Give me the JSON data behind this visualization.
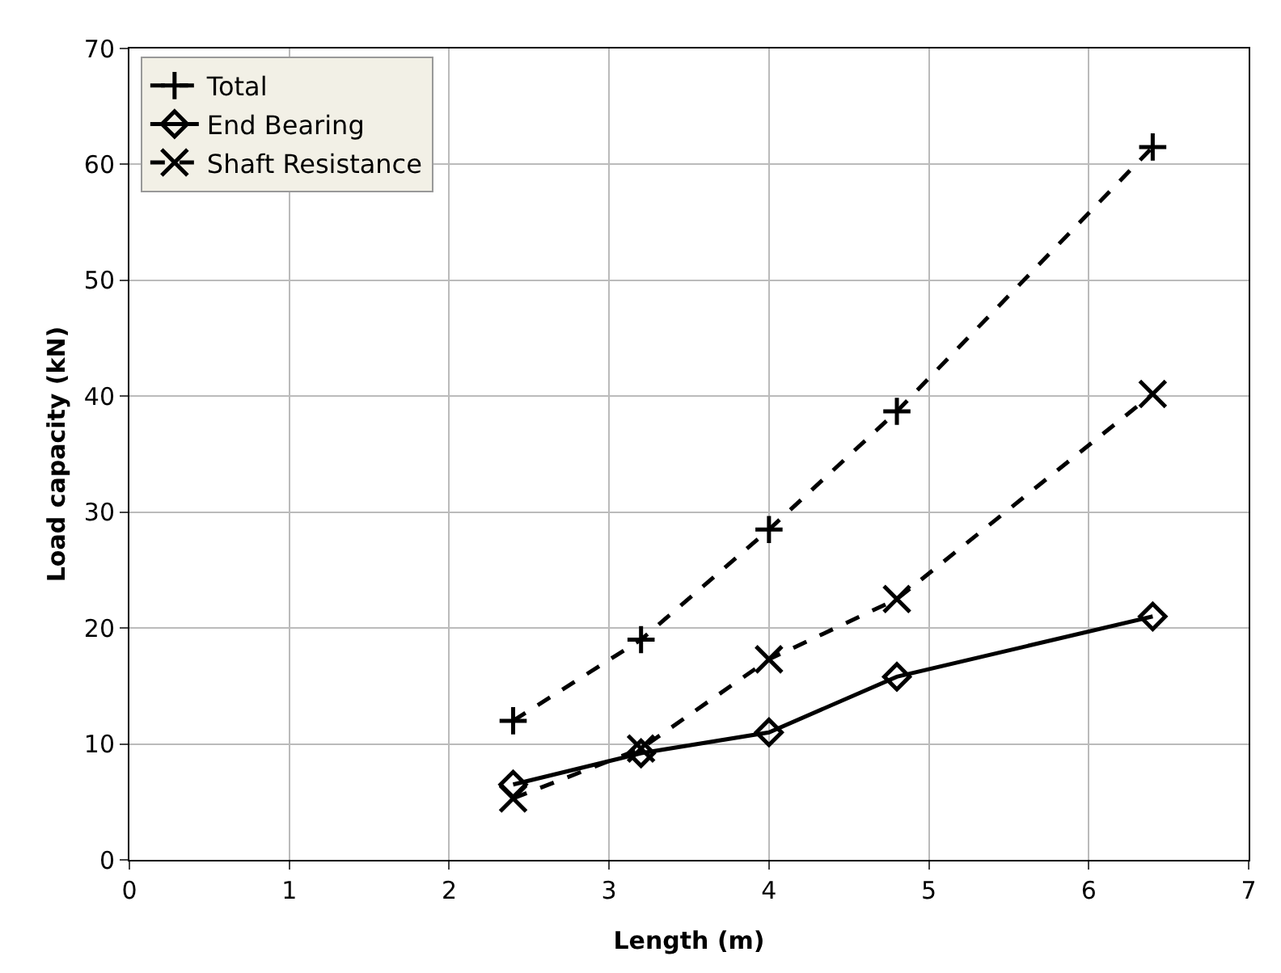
{
  "chart_data": {
    "type": "line",
    "xlabel": "Length (m)",
    "ylabel": "Load capacity (kN)",
    "x": [
      2.4,
      3.2,
      4,
      4.8,
      6.4
    ],
    "series": [
      {
        "name": "Total",
        "color": "#000000",
        "values": [
          12,
          19,
          28.5,
          38.7,
          61.5
        ],
        "marker": "cross",
        "line_style": "dashed"
      },
      {
        "name": "End Bearing",
        "color": "#000000",
        "values": [
          6.5,
          9.2,
          11,
          15.8,
          21
        ],
        "marker": "diamond",
        "line_style": "solid"
      },
      {
        "name": "Shaft Resistance",
        "color": "#000000",
        "values": [
          5.3,
          9.6,
          17.3,
          22.5,
          40.2
        ],
        "marker": "x",
        "line_style": "dashed"
      }
    ],
    "xlim": [
      0,
      7
    ],
    "xticks": [
      0,
      1,
      2,
      3,
      4,
      5,
      6,
      7
    ],
    "ylim": [
      0,
      70
    ],
    "yticks": [
      0,
      10,
      20,
      30,
      40,
      50,
      60,
      70
    ],
    "grid": true,
    "legend": "top left"
  }
}
